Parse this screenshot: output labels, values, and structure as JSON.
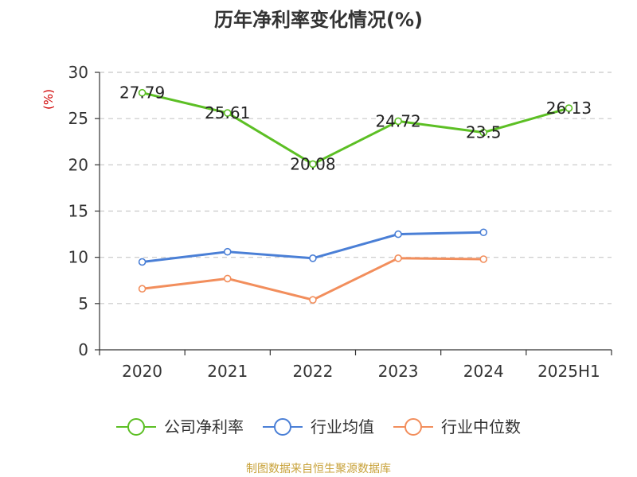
{
  "chart_data": {
    "type": "line",
    "title": "历年净利率变化情况(%)",
    "ylabel": "(%)",
    "ylim": [
      0,
      30
    ],
    "yticks": [
      0,
      5,
      10,
      15,
      20,
      25,
      30
    ],
    "grid": true,
    "legend_position": "bottom",
    "categories": [
      "2020",
      "2021",
      "2022",
      "2023",
      "2024",
      "2025H1"
    ],
    "series": [
      {
        "name": "公司净利率",
        "color": "#5cbf24",
        "values": [
          27.79,
          25.61,
          20.08,
          24.72,
          23.5,
          26.13
        ],
        "labels": [
          "27.79",
          "25.61",
          "20.08",
          "24.72",
          "23.5",
          "26.13"
        ]
      },
      {
        "name": "行业均值",
        "color": "#4a7fd6",
        "values": [
          9.5,
          10.6,
          9.9,
          12.5,
          12.7,
          null
        ]
      },
      {
        "name": "行业中位数",
        "color": "#f28e5c",
        "values": [
          6.6,
          7.7,
          5.4,
          9.9,
          9.8,
          null
        ]
      }
    ],
    "source": "制图数据来自恒生聚源数据库"
  }
}
